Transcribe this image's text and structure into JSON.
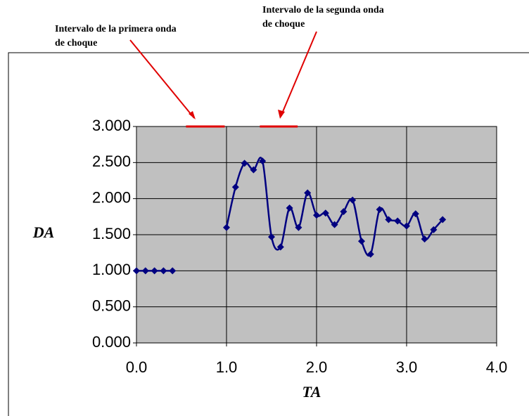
{
  "chart_data": {
    "type": "line",
    "xlabel": "TA",
    "ylabel": "DA",
    "annotations": [
      {
        "lines": [
          "Intervalo de la primera onda",
          "de choque"
        ],
        "interval": [
          0.55,
          0.98
        ]
      },
      {
        "lines": [
          "Intervalo de la segunda onda",
          "de choque"
        ],
        "interval": [
          1.37,
          1.79
        ]
      }
    ],
    "x": [
      0.0,
      0.1,
      0.2,
      0.3,
      0.4,
      0.5,
      0.6,
      0.7,
      0.8,
      0.9,
      1.0,
      1.1,
      1.2,
      1.3,
      1.4,
      1.5,
      1.6,
      1.7,
      1.8,
      1.9,
      2.0,
      2.1,
      2.2,
      2.3,
      2.4,
      2.5,
      2.6,
      2.7,
      2.8,
      2.9,
      3.0,
      3.1,
      3.2,
      3.3,
      3.4
    ],
    "series": [
      {
        "color": "#000080",
        "values": [
          1.0,
          1.0,
          1.0,
          1.0,
          1.0,
          null,
          null,
          null,
          null,
          null,
          1.6,
          2.16,
          2.49,
          2.4,
          2.52,
          1.47,
          1.33,
          1.87,
          1.6,
          2.08,
          1.77,
          1.8,
          1.64,
          1.82,
          1.98,
          1.41,
          1.23,
          1.85,
          1.71,
          1.69,
          1.62,
          1.79,
          1.44,
          1.57,
          1.71
        ]
      }
    ],
    "annotation_color": "#e00000",
    "plot_background": "#c0c0c0",
    "xlim": [
      0,
      4
    ],
    "ylim": [
      0,
      3
    ],
    "xticks": [
      {
        "value": 0,
        "label": "0.0"
      },
      {
        "value": 1,
        "label": "1.0"
      },
      {
        "value": 2,
        "label": "2.0"
      },
      {
        "value": 3,
        "label": "3.0"
      },
      {
        "value": 4,
        "label": "4.0"
      }
    ],
    "yticks": [
      {
        "value": 0,
        "label": "0.000"
      },
      {
        "value": 0.5,
        "label": "0.500"
      },
      {
        "value": 1,
        "label": "1.000"
      },
      {
        "value": 1.5,
        "label": "1.500"
      },
      {
        "value": 2,
        "label": "2.000"
      },
      {
        "value": 2.5,
        "label": "2.500"
      },
      {
        "value": 3,
        "label": "3.000"
      }
    ],
    "grid": true
  }
}
